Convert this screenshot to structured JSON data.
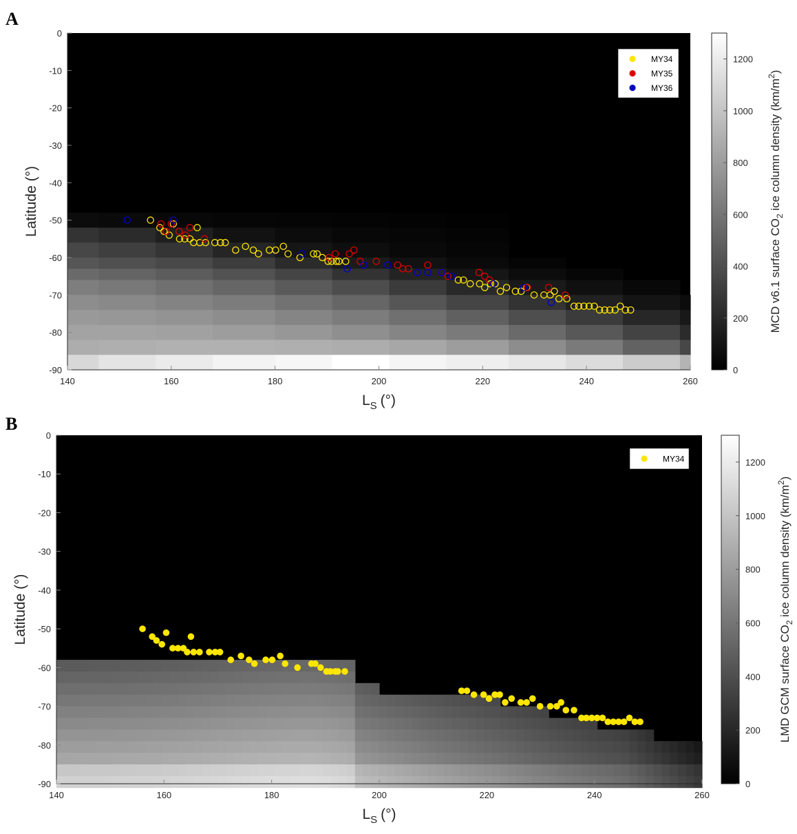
{
  "chart_data": [
    {
      "panel": "A",
      "type": "heatmap",
      "xlabel": "L",
      "xlabel_sub": "S",
      "xlabel_unit": "(°)",
      "ylabel": "Latitude (°)",
      "xlim": [
        140,
        260
      ],
      "ylim": [
        -90,
        0
      ],
      "xticks": [
        140,
        160,
        180,
        200,
        220,
        240,
        260
      ],
      "yticks": [
        0,
        -10,
        -20,
        -30,
        -40,
        -50,
        -60,
        -70,
        -80,
        -90
      ],
      "colorbar": {
        "label_pre": "MCD v6.1 surface CO",
        "label_sub": "2",
        "label_mid": " ice column density (km/m",
        "label_sup": "2",
        "label_post": ")",
        "range": [
          0,
          1300
        ],
        "ticks": [
          0,
          200,
          400,
          600,
          800,
          1000,
          1200
        ],
        "colors": [
          "#000000",
          "#ffffff"
        ]
      },
      "heatmap": {
        "x_edges": [
          140,
          146,
          157,
          168,
          180,
          191,
          202,
          213,
          225,
          236,
          247,
          258,
          260
        ],
        "lat_top": [
          -48,
          -50,
          -52,
          -54,
          -62,
          -62,
          -62,
          -66,
          -72,
          -76,
          -76,
          -76
        ],
        "rows": [
          {
            "y0": -48,
            "y1": -52,
            "v": [
              60,
              50,
              40,
              30,
              25,
              20,
              15,
              10,
              0,
              0,
              0,
              0
            ]
          },
          {
            "y0": -52,
            "y1": -56,
            "v": [
              260,
              220,
              160,
              90,
              60,
              40,
              30,
              20,
              0,
              0,
              0,
              0
            ]
          },
          {
            "y0": -56,
            "y1": -60,
            "v": [
              360,
              320,
              270,
              190,
              110,
              70,
              45,
              30,
              0,
              0,
              0,
              0
            ]
          },
          {
            "y0": -60,
            "y1": -63,
            "v": [
              440,
              410,
              370,
              310,
              220,
              140,
              90,
              50,
              25,
              0,
              0,
              0
            ]
          },
          {
            "y0": -63,
            "y1": -66,
            "v": [
              540,
              510,
              470,
              420,
              350,
              260,
              180,
              110,
              60,
              30,
              0,
              0
            ]
          },
          {
            "y0": -66,
            "y1": -70,
            "v": [
              640,
              610,
              570,
              520,
              460,
              390,
              300,
              210,
              130,
              80,
              40,
              0
            ]
          },
          {
            "y0": -70,
            "y1": -74,
            "v": [
              720,
              700,
              670,
              630,
              580,
              520,
              440,
              350,
              260,
              170,
              100,
              60
            ]
          },
          {
            "y0": -74,
            "y1": -78,
            "v": [
              780,
              770,
              750,
              720,
              680,
              630,
              570,
              490,
              400,
              300,
              200,
              120
            ]
          },
          {
            "y0": -78,
            "y1": -82,
            "v": [
              830,
              830,
              820,
              800,
              770,
              730,
              680,
              620,
              540,
              450,
              340,
              220
            ]
          },
          {
            "y0": -82,
            "y1": -86,
            "v": [
              880,
              890,
              900,
              900,
              890,
              880,
              850,
              800,
              720,
              620,
              500,
              360
            ]
          },
          {
            "y0": -86,
            "y1": -90,
            "v": [
              1100,
              1160,
              1200,
              1240,
              1260,
              1300,
              1250,
              1220,
              1180,
              1120,
              1040,
              920
            ]
          }
        ]
      },
      "legend": {
        "position": "top-right",
        "entries": [
          {
            "name": "MY34",
            "color": "#ffe600"
          },
          {
            "name": "MY35",
            "color": "#e00000"
          },
          {
            "name": "MY36",
            "color": "#0000c8"
          }
        ]
      },
      "series": [
        {
          "name": "MY34",
          "marker": "open",
          "x": [
            156,
            157.8,
            158.6,
            159.6,
            160.4,
            161.6,
            162.6,
            163.6,
            164.3,
            165,
            165.5,
            166.6,
            168.4,
            169.5,
            170.4,
            172.4,
            174.3,
            175.8,
            176.8,
            178.9,
            180.1,
            181.6,
            182.5,
            184.8,
            187.4,
            188.1,
            189.1,
            190.2,
            190.9,
            191.8,
            192.3,
            193.6,
            215.3,
            216.3,
            217.6,
            219.4,
            220.4,
            221.5,
            222.4,
            223.4,
            224.6,
            226.3,
            227.4,
            228.5,
            229.9,
            231.8,
            233,
            233.8,
            234.7,
            236.2,
            237.6,
            238.5,
            239.5,
            240.5,
            241.5,
            242.5,
            243.5,
            244.5,
            245.5,
            246.5,
            247.5,
            248.5
          ],
          "y": [
            -50,
            -52,
            -53,
            -54,
            -51,
            -55,
            -55,
            -55,
            -56,
            -52,
            -56,
            -56,
            -56,
            -56,
            -56,
            -58,
            -57,
            -58,
            -59,
            -58,
            -58,
            -57,
            -59,
            -60,
            -59,
            -59,
            -60,
            -61,
            -61,
            -61,
            -61,
            -61,
            -66,
            -66,
            -67,
            -67,
            -68,
            -67,
            -67,
            -69,
            -68,
            -69,
            -69,
            -68,
            -70,
            -70,
            -70,
            -69,
            -71,
            -71,
            -73,
            -73,
            -73,
            -73,
            -73,
            -74,
            -74,
            -74,
            -74,
            -73,
            -74,
            -74
          ]
        },
        {
          "name": "MY35",
          "marker": "open",
          "x": [
            158,
            159,
            160,
            161.5,
            162.7,
            163.6,
            166.4,
            190.4,
            191.6,
            194.3,
            195.2,
            196.4,
            199.5,
            203.6,
            204.6,
            205.7,
            209.4,
            212.1,
            213.3,
            219.3,
            220.4,
            221.3,
            228.6,
            232.7,
            235.9
          ],
          "y": [
            -51,
            -53,
            -51,
            -53,
            -54,
            -52,
            -55,
            -60,
            -59,
            -59,
            -58,
            -61,
            -61,
            -62,
            -63,
            -63,
            -62,
            -64,
            -65,
            -64,
            -65,
            -66,
            -68,
            -68,
            -70
          ]
        },
        {
          "name": "MY36",
          "marker": "open",
          "x": [
            151.5,
            160.4,
            185.2,
            193.9,
            197.1,
            201.7,
            207.4,
            209.4,
            212.1,
            214,
            222,
            227.9,
            233.2
          ],
          "y": [
            -50,
            -50,
            -59,
            -63,
            -62,
            -62,
            -64,
            -64,
            -64,
            -65,
            -67,
            -68,
            -72
          ]
        }
      ]
    },
    {
      "panel": "B",
      "type": "heatmap",
      "xlabel": "L",
      "xlabel_sub": "S",
      "xlabel_unit": "(°)",
      "ylabel": "Latitude (°)",
      "xlim": [
        140,
        260
      ],
      "ylim": [
        -90,
        0
      ],
      "xticks": [
        140,
        160,
        180,
        200,
        220,
        240,
        260
      ],
      "yticks": [
        0,
        -10,
        -20,
        -30,
        -40,
        -50,
        -60,
        -70,
        -80,
        -90
      ],
      "colorbar": {
        "label_pre": "LMD GCM surface CO",
        "label_sub": "2",
        "label_mid": " ice column density (km/m",
        "label_sup": "2",
        "label_post": ")",
        "range": [
          0,
          1300
        ],
        "ticks": [
          0,
          200,
          400,
          600,
          800,
          1000,
          1200
        ],
        "colors": [
          "#000000",
          "#ffffff"
        ]
      },
      "legend": {
        "position": "top-right",
        "entries": [
          {
            "name": "MY34",
            "color": "#ffe600"
          }
        ]
      },
      "series": [
        {
          "name": "MY34",
          "marker": "filled",
          "x": [
            156,
            157.8,
            158.6,
            159.6,
            160.4,
            161.6,
            162.6,
            163.6,
            164.3,
            165,
            165.5,
            166.6,
            168.4,
            169.5,
            170.4,
            172.4,
            174.3,
            175.8,
            176.8,
            178.9,
            180.1,
            181.6,
            182.5,
            184.8,
            187.4,
            188.1,
            189.1,
            190.2,
            190.9,
            191.8,
            192.3,
            193.6,
            215.3,
            216.3,
            217.6,
            219.4,
            220.4,
            221.5,
            222.4,
            223.4,
            224.6,
            226.3,
            227.4,
            228.5,
            229.9,
            231.8,
            233,
            233.8,
            234.7,
            236.2,
            237.6,
            238.5,
            239.5,
            240.5,
            241.5,
            242.5,
            243.5,
            244.5,
            245.5,
            246.5,
            247.5,
            248.5
          ],
          "y": [
            -50,
            -52,
            -53,
            -54,
            -51,
            -55,
            -55,
            -55,
            -56,
            -52,
            -56,
            -56,
            -56,
            -56,
            -56,
            -58,
            -57,
            -58,
            -59,
            -58,
            -58,
            -57,
            -59,
            -60,
            -59,
            -59,
            -60,
            -61,
            -61,
            -61,
            -61,
            -61,
            -66,
            -66,
            -67,
            -67,
            -68,
            -67,
            -67,
            -69,
            -68,
            -69,
            -69,
            -68,
            -70,
            -70,
            -70,
            -69,
            -71,
            -71,
            -73,
            -73,
            -73,
            -73,
            -73,
            -74,
            -74,
            -74,
            -74,
            -73,
            -74,
            -74
          ]
        }
      ]
    }
  ]
}
